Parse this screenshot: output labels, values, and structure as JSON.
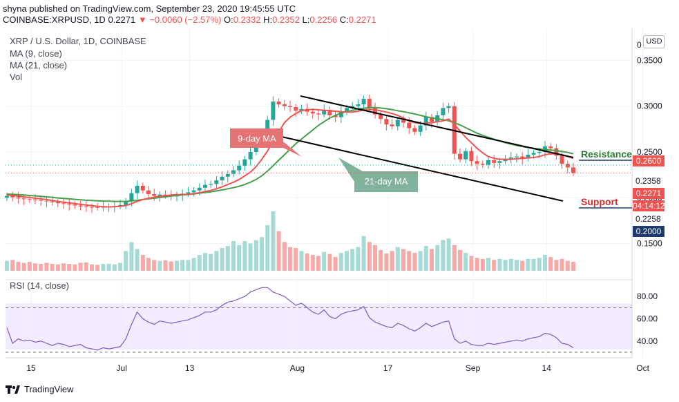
{
  "header": {
    "published": "shyna published on TradingView.com, September 23, 2020 19:45:55 UTC",
    "symbol": "COINBASE:XRPUSD, 1D",
    "last": "0.2271",
    "change": "▼ −0.0060 (−2.57%)",
    "o_label": "O:",
    "o": "0.2332",
    "h_label": "H:",
    "h": "0.2352",
    "l_label": "L:",
    "l": "0.2256",
    "c_label": "C:",
    "c": "0.2271"
  },
  "legend": {
    "title": "XRP / U.S. Dollar, 1D, COINBASE",
    "ma9": "MA (9, close)",
    "ma21": "MA (21, close)",
    "vol": "Vol",
    "rsi": "RSI (14, close)"
  },
  "currency_button": "USD",
  "footer_logo": "TradingView",
  "annotations": {
    "ma9_label": "9-day MA",
    "ma21_label": "21-day MA",
    "resistance": "Resistance",
    "support": "Support"
  },
  "price_badges": {
    "resistance_level": "0.2600",
    "current": "0.2271",
    "countdown": "04:14:12",
    "mark_2358": "0.2358",
    "mark_2258": "0.2258",
    "support_level": "0.2000"
  },
  "colors": {
    "up": "#26a69a",
    "down": "#ef5350",
    "ma9": "#f05350",
    "ma21": "#43a047",
    "rsi": "#7e57c2",
    "resistance_text": "#2e7d32",
    "support_text": "#d32f2f"
  },
  "chart_data": {
    "type": "candlestick",
    "price_axis": {
      "ticks": [
        0.35,
        0.3,
        0.25,
        0.2,
        0.15
      ],
      "tick_labels": [
        "0.3500",
        "0.3000",
        "0.2500",
        "0.2000",
        "0.1500"
      ],
      "top_label": "0",
      "range": [
        0.115,
        0.385
      ]
    },
    "rsi_axis": {
      "ticks": [
        80,
        60,
        40
      ],
      "tick_labels": [
        "80.00",
        "60.00",
        "40.00"
      ],
      "band": [
        30,
        70
      ],
      "range": [
        25,
        95
      ]
    },
    "x_axis": {
      "ticks": [
        {
          "label": "15",
          "day": 0
        },
        {
          "label": "Jul",
          "day": 16
        },
        {
          "label": "13",
          "day": 28
        },
        {
          "label": "Aug",
          "day": 47
        },
        {
          "label": "17",
          "day": 63
        },
        {
          "label": "Sep",
          "day": 78
        },
        {
          "label": "14",
          "day": 91
        },
        {
          "label": "Oct",
          "day": 108
        }
      ],
      "first_day": "2020-06-15",
      "last_candle_day": 100
    },
    "close": [
      0.202,
      0.2005,
      0.1992,
      0.1985,
      0.198,
      0.1975,
      0.1968,
      0.196,
      0.195,
      0.194,
      0.1932,
      0.1925,
      0.1915,
      0.1905,
      0.19,
      0.1898,
      0.1895,
      0.19,
      0.1905,
      0.191,
      0.192,
      0.196,
      0.205,
      0.213,
      0.208,
      0.204,
      0.202,
      0.2035,
      0.2025,
      0.2015,
      0.203,
      0.2045,
      0.206,
      0.208,
      0.211,
      0.214,
      0.215,
      0.219,
      0.223,
      0.226,
      0.23,
      0.235,
      0.242,
      0.25,
      0.26,
      0.27,
      0.285,
      0.305,
      0.302,
      0.3,
      0.299,
      0.295,
      0.297,
      0.294,
      0.292,
      0.291,
      0.296,
      0.29,
      0.288,
      0.294,
      0.298,
      0.3,
      0.302,
      0.308,
      0.298,
      0.291,
      0.286,
      0.28,
      0.278,
      0.285,
      0.282,
      0.276,
      0.272,
      0.279,
      0.288,
      0.283,
      0.29,
      0.298,
      0.3,
      0.248,
      0.242,
      0.251,
      0.24,
      0.237,
      0.236,
      0.241,
      0.238,
      0.24,
      0.242,
      0.244,
      0.245,
      0.243,
      0.247,
      0.249,
      0.25,
      0.256,
      0.254,
      0.246,
      0.237,
      0.2331,
      0.2271
    ],
    "ma9": [
      0.203,
      0.2025,
      0.2018,
      0.201,
      0.2003,
      0.1995,
      0.1988,
      0.198,
      0.197,
      0.196,
      0.1952,
      0.1944,
      0.1936,
      0.1928,
      0.192,
      0.1913,
      0.1907,
      0.1903,
      0.19,
      0.1902,
      0.1906,
      0.1915,
      0.1935,
      0.196,
      0.198,
      0.1995,
      0.2005,
      0.2015,
      0.2022,
      0.203,
      0.2035,
      0.2035,
      0.2038,
      0.2045,
      0.2055,
      0.2068,
      0.208,
      0.2098,
      0.212,
      0.2145,
      0.217,
      0.22,
      0.224,
      0.228,
      0.234,
      0.242,
      0.251,
      0.262,
      0.272,
      0.282,
      0.288,
      0.292,
      0.295,
      0.296,
      0.2965,
      0.296,
      0.2955,
      0.295,
      0.2945,
      0.294,
      0.2935,
      0.2935,
      0.2945,
      0.296,
      0.2965,
      0.296,
      0.295,
      0.2935,
      0.292,
      0.29,
      0.287,
      0.284,
      0.282,
      0.281,
      0.2815,
      0.282,
      0.283,
      0.284,
      0.286,
      0.28,
      0.273,
      0.266,
      0.26,
      0.254,
      0.249,
      0.245,
      0.243,
      0.242,
      0.242,
      0.242,
      0.2425,
      0.243,
      0.2435,
      0.244,
      0.245,
      0.247,
      0.248,
      0.248,
      0.247,
      0.245,
      0.243
    ],
    "ma21": [
      0.204,
      0.2038,
      0.2034,
      0.203,
      0.2025,
      0.202,
      0.2015,
      0.201,
      0.2004,
      0.1998,
      0.1993,
      0.1988,
      0.1983,
      0.1978,
      0.1973,
      0.197,
      0.1967,
      0.1964,
      0.1962,
      0.196,
      0.196,
      0.196,
      0.1965,
      0.1972,
      0.198,
      0.1988,
      0.1995,
      0.2003,
      0.201,
      0.2018,
      0.2025,
      0.203,
      0.2036,
      0.2042,
      0.205,
      0.2058,
      0.2065,
      0.2075,
      0.2085,
      0.2098,
      0.211,
      0.2125,
      0.2145,
      0.217,
      0.22,
      0.224,
      0.229,
      0.235,
      0.241,
      0.247,
      0.253,
      0.259,
      0.264,
      0.269,
      0.274,
      0.279,
      0.283,
      0.287,
      0.29,
      0.2925,
      0.294,
      0.2955,
      0.2968,
      0.2978,
      0.2985,
      0.2985,
      0.298,
      0.2972,
      0.2962,
      0.295,
      0.294,
      0.2928,
      0.2915,
      0.29,
      0.2885,
      0.2872,
      0.2862,
      0.2852,
      0.284,
      0.282,
      0.2795,
      0.2765,
      0.2735,
      0.2705,
      0.268,
      0.266,
      0.264,
      0.262,
      0.26,
      0.2585,
      0.257,
      0.2558,
      0.2548,
      0.254,
      0.2532,
      0.2525,
      0.252,
      0.2515,
      0.2505,
      0.2495,
      0.248
    ],
    "volume": [
      20,
      22,
      18,
      16,
      18,
      15,
      14,
      16,
      14,
      13,
      15,
      14,
      13,
      16,
      17,
      13,
      12,
      14,
      14,
      13,
      16,
      40,
      58,
      44,
      32,
      26,
      22,
      20,
      21,
      19,
      20,
      22,
      22,
      26,
      32,
      36,
      34,
      40,
      46,
      50,
      60,
      52,
      60,
      55,
      62,
      68,
      92,
      120,
      80,
      58,
      48,
      46,
      40,
      35,
      32,
      30,
      38,
      34,
      28,
      36,
      40,
      44,
      48,
      70,
      58,
      52,
      42,
      35,
      40,
      48,
      44,
      40,
      36,
      40,
      50,
      44,
      52,
      62,
      65,
      52,
      42,
      36,
      30,
      26,
      24,
      26,
      22,
      24,
      22,
      24,
      22,
      20,
      24,
      24,
      26,
      32,
      28,
      22,
      24,
      20,
      18
    ],
    "rsi": [
      52,
      38,
      42,
      40,
      41,
      39,
      40,
      38,
      36,
      38,
      37,
      35,
      36,
      37,
      34,
      33,
      32,
      34,
      33,
      34,
      35,
      42,
      55,
      66,
      60,
      57,
      55,
      58,
      57,
      56,
      57,
      58,
      59,
      61,
      63,
      66,
      66,
      68,
      72,
      75,
      76,
      78,
      80,
      84,
      86,
      88,
      88,
      84,
      82,
      80,
      76,
      72,
      74,
      70,
      66,
      64,
      68,
      62,
      60,
      64,
      66,
      67,
      68,
      71,
      61,
      57,
      55,
      53,
      52,
      56,
      54,
      51,
      49,
      52,
      56,
      53,
      55,
      57,
      58,
      42,
      38,
      40,
      37,
      36,
      36,
      38,
      37,
      38,
      39,
      40,
      41,
      40,
      42,
      43,
      44,
      47,
      46,
      43,
      38,
      37,
      34
    ]
  }
}
